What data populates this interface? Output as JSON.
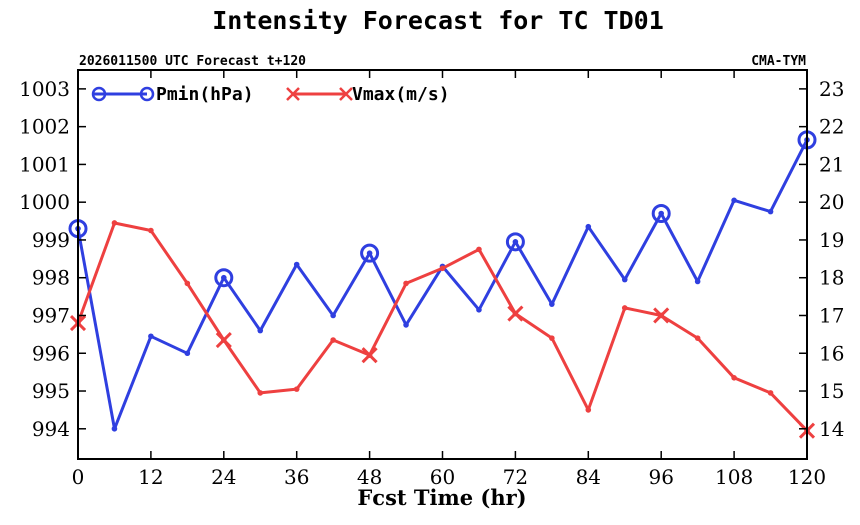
{
  "chart_data": {
    "type": "line",
    "title": "Intensity Forecast for TC TD01",
    "subtitle_left": "2026011500 UTC Forecast t+120",
    "subtitle_right": "CMA-TYM",
    "xlabel": "Fcst Time (hr)",
    "xlim": [
      0,
      120
    ],
    "x_ticks": [
      0,
      12,
      24,
      36,
      48,
      60,
      72,
      84,
      96,
      108,
      120
    ],
    "x_tick_labels": [
      "0",
      "12",
      "24",
      "36",
      "48",
      "60",
      "72",
      "84",
      "96",
      "108",
      "120"
    ],
    "y_left": {
      "lim": [
        993.2,
        1003.5
      ],
      "ticks": [
        994,
        995,
        996,
        997,
        998,
        999,
        1000,
        1001,
        1002,
        1003
      ],
      "tick_labels": [
        "994",
        "995",
        "996",
        "997",
        "998",
        "999",
        "1000",
        "1001",
        "1002",
        "1003"
      ]
    },
    "y_right": {
      "lim": [
        13.2,
        23.5
      ],
      "ticks": [
        14,
        15,
        16,
        17,
        18,
        19,
        20,
        21,
        22,
        23
      ],
      "tick_labels": [
        "14",
        "15",
        "16",
        "17",
        "18",
        "19",
        "20",
        "21",
        "22",
        "23"
      ]
    },
    "x": [
      0,
      6,
      12,
      18,
      24,
      30,
      36,
      42,
      48,
      54,
      60,
      66,
      72,
      78,
      84,
      90,
      96,
      102,
      108,
      114,
      120
    ],
    "series": [
      {
        "name": "Pmin(hPa)",
        "axis": "left",
        "color": "#2f3fe0",
        "marker": "circle",
        "values": [
          999.3,
          994.0,
          996.45,
          996.0,
          998.0,
          996.6,
          998.35,
          997.0,
          998.65,
          996.75,
          998.3,
          997.15,
          998.95,
          997.3,
          999.35,
          997.95,
          999.7,
          997.9,
          1000.05,
          999.75,
          1001.65
        ]
      },
      {
        "name": "Vmax(m/s)",
        "axis": "right",
        "color": "#ee4040",
        "marker": "x",
        "values": [
          16.8,
          19.45,
          19.25,
          17.85,
          16.35,
          14.95,
          15.05,
          16.35,
          15.95,
          17.85,
          18.25,
          18.75,
          17.05,
          16.4,
          14.5,
          17.2,
          17.0,
          16.4,
          15.35,
          14.95,
          13.95
        ]
      }
    ]
  },
  "legend": {
    "pmin_label": "Pmin(hPa)",
    "vmax_label": "Vmax(m/s)"
  }
}
